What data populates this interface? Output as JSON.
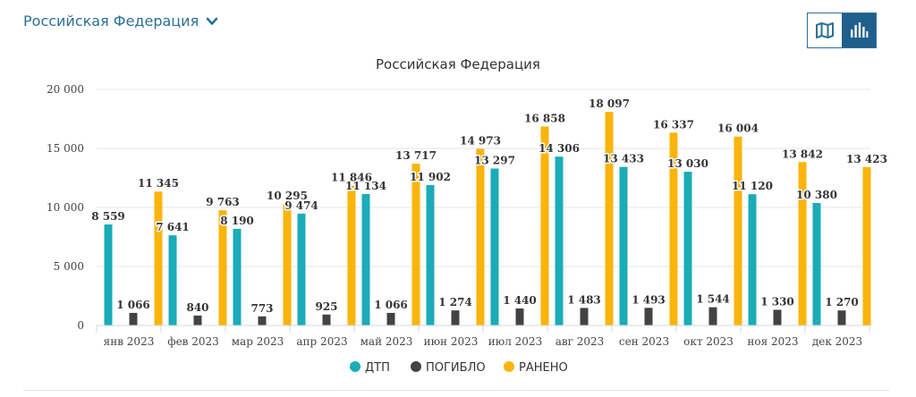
{
  "header": {
    "region_label": "Российская Федерация",
    "chevron_icon": "chevron-down-icon",
    "view_toggle": {
      "map_icon": "map-icon",
      "chart_icon": "bar-chart-icon",
      "active": "chart",
      "active_color": "#1f5f8b",
      "icon_color": "#2a6f97"
    }
  },
  "chart_data": {
    "type": "bar",
    "title": "Российская Федерация",
    "categories": [
      "янв 2023",
      "фев 2023",
      "мар 2023",
      "апр 2023",
      "май 2023",
      "июн 2023",
      "июл 2023",
      "авг 2023",
      "сен 2023",
      "окт 2023",
      "ноя 2023",
      "дек 2023"
    ],
    "series": [
      {
        "name": "ДТП",
        "color": "#1aacb8",
        "values": [
          8559,
          7641,
          8190,
          9474,
          11134,
          11902,
          13297,
          14306,
          13433,
          13030,
          11120,
          10380
        ],
        "labels": [
          "8 559",
          "7 641",
          "8 190",
          "9 474",
          "11 134",
          "11 902",
          "13 297",
          "14 306",
          "13 433",
          "13 030",
          "11 120",
          "10 380"
        ]
      },
      {
        "name": "ПОГИБЛО",
        "color": "#434343",
        "values": [
          1066,
          840,
          773,
          925,
          1066,
          1274,
          1440,
          1483,
          1493,
          1544,
          1330,
          1270
        ],
        "labels": [
          "1 066",
          "840",
          "773",
          "925",
          "1 066",
          "1 274",
          "1 440",
          "1 483",
          "1 493",
          "1 544",
          "1 330",
          "1 270"
        ]
      },
      {
        "name": "РАНЕНО",
        "color": "#fbb40a",
        "values": [
          11345,
          9763,
          10295,
          11846,
          13717,
          14973,
          16858,
          18097,
          16337,
          16004,
          13842,
          13423
        ],
        "labels": [
          "11 345",
          "9 763",
          "10 295",
          "11 846",
          "13 717",
          "14 973",
          "16 858",
          "18 097",
          "16 337",
          "16 004",
          "13 842",
          "13 423"
        ]
      }
    ],
    "ylim": [
      0,
      20000
    ],
    "yticks": [
      0,
      5000,
      10000,
      15000,
      20000
    ],
    "ytick_labels": [
      "0",
      "5 000",
      "10 000",
      "15 000",
      "20 000"
    ],
    "grid": true,
    "legend_position": "bottom-center"
  }
}
